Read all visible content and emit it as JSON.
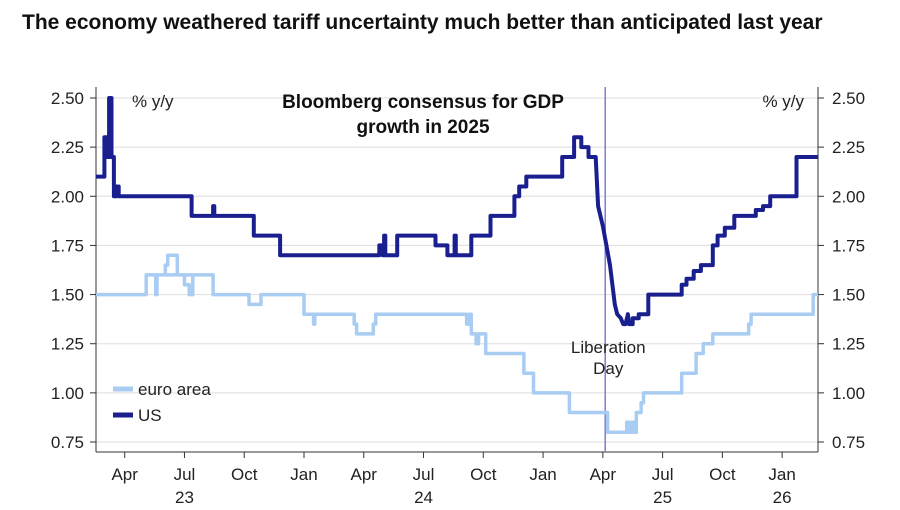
{
  "headline": "The economy weathered tariff uncertainty much better than anticipated last year",
  "colors": {
    "us": "#1a1f8f",
    "euro": "#a8ccf2",
    "grid": "#dddddd",
    "axis": "#333333",
    "marker": "#7c7cd8"
  },
  "chart_data": {
    "type": "line",
    "title": "Bloomberg consensus for GDP growth in 2025",
    "title_lines": [
      "Bloomberg consensus for GDP",
      "growth in 2025"
    ],
    "unit_left": "% y/y",
    "unit_right": "% y/y",
    "ylim": [
      0.75,
      2.5
    ],
    "yticks": [
      "2.50",
      "2.25",
      "2.00",
      "1.75",
      "1.50",
      "1.25",
      "1.00",
      "0.75"
    ],
    "x_range": [
      2023.13,
      2026.15
    ],
    "xticks": [
      {
        "t": 2023.25,
        "label": "Apr"
      },
      {
        "t": 2023.5,
        "label": "Jul"
      },
      {
        "t": 2023.75,
        "label": "Oct"
      },
      {
        "t": 2024.0,
        "label": "Jan"
      },
      {
        "t": 2024.25,
        "label": "Apr"
      },
      {
        "t": 2024.5,
        "label": "Jul"
      },
      {
        "t": 2024.75,
        "label": "Oct"
      },
      {
        "t": 2025.0,
        "label": "Jan"
      },
      {
        "t": 2025.25,
        "label": "Apr"
      },
      {
        "t": 2025.5,
        "label": "Jul"
      },
      {
        "t": 2025.75,
        "label": "Oct"
      },
      {
        "t": 2026.0,
        "label": "Jan"
      }
    ],
    "years": [
      {
        "t": 2023.5,
        "label": "23"
      },
      {
        "t": 2024.5,
        "label": "24"
      },
      {
        "t": 2025.5,
        "label": "25"
      },
      {
        "t": 2026.0,
        "label": "26"
      }
    ],
    "annotation": {
      "t": 2025.26,
      "lines": [
        "Liberation",
        "Day"
      ]
    },
    "legend": [
      {
        "key": "euro",
        "label": "euro area"
      },
      {
        "key": "us",
        "label": "US"
      }
    ],
    "series": [
      {
        "name": "US",
        "key": "us",
        "points": [
          [
            2023.13,
            2.1
          ],
          [
            2023.165,
            2.1
          ],
          [
            2023.165,
            2.3
          ],
          [
            2023.175,
            2.3
          ],
          [
            2023.175,
            2.2
          ],
          [
            2023.185,
            2.2
          ],
          [
            2023.185,
            2.5
          ],
          [
            2023.195,
            2.5
          ],
          [
            2023.195,
            2.2
          ],
          [
            2023.205,
            2.2
          ],
          [
            2023.205,
            2.0
          ],
          [
            2023.215,
            2.0
          ],
          [
            2023.215,
            2.05
          ],
          [
            2023.225,
            2.05
          ],
          [
            2023.225,
            2.0
          ],
          [
            2023.53,
            2.0
          ],
          [
            2023.53,
            1.9
          ],
          [
            2023.62,
            1.9
          ],
          [
            2023.62,
            1.95
          ],
          [
            2023.625,
            1.95
          ],
          [
            2023.625,
            1.9
          ],
          [
            2023.79,
            1.9
          ],
          [
            2023.79,
            1.8
          ],
          [
            2023.9,
            1.8
          ],
          [
            2023.9,
            1.7
          ],
          [
            2024.315,
            1.7
          ],
          [
            2024.315,
            1.75
          ],
          [
            2024.33,
            1.75
          ],
          [
            2024.33,
            1.7
          ],
          [
            2024.335,
            1.7
          ],
          [
            2024.335,
            1.8
          ],
          [
            2024.34,
            1.8
          ],
          [
            2024.34,
            1.7
          ],
          [
            2024.39,
            1.7
          ],
          [
            2024.39,
            1.8
          ],
          [
            2024.55,
            1.8
          ],
          [
            2024.55,
            1.75
          ],
          [
            2024.6,
            1.75
          ],
          [
            2024.6,
            1.7
          ],
          [
            2024.63,
            1.7
          ],
          [
            2024.63,
            1.8
          ],
          [
            2024.635,
            1.8
          ],
          [
            2024.635,
            1.7
          ],
          [
            2024.7,
            1.7
          ],
          [
            2024.7,
            1.8
          ],
          [
            2024.78,
            1.8
          ],
          [
            2024.78,
            1.9
          ],
          [
            2024.88,
            1.9
          ],
          [
            2024.88,
            2.0
          ],
          [
            2024.9,
            2.0
          ],
          [
            2024.9,
            2.05
          ],
          [
            2024.93,
            2.05
          ],
          [
            2024.93,
            2.1
          ],
          [
            2025.08,
            2.1
          ],
          [
            2025.08,
            2.2
          ],
          [
            2025.13,
            2.2
          ],
          [
            2025.13,
            2.3
          ],
          [
            2025.16,
            2.3
          ],
          [
            2025.16,
            2.25
          ],
          [
            2025.19,
            2.25
          ],
          [
            2025.19,
            2.2
          ],
          [
            2025.22,
            2.2
          ],
          [
            2025.23,
            1.95
          ],
          [
            2025.25,
            1.85
          ],
          [
            2025.265,
            1.75
          ],
          [
            2025.28,
            1.65
          ],
          [
            2025.29,
            1.55
          ],
          [
            2025.3,
            1.45
          ],
          [
            2025.31,
            1.4
          ],
          [
            2025.325,
            1.38
          ],
          [
            2025.335,
            1.35
          ],
          [
            2025.345,
            1.35
          ],
          [
            2025.355,
            1.4
          ],
          [
            2025.36,
            1.35
          ],
          [
            2025.375,
            1.35
          ],
          [
            2025.375,
            1.38
          ],
          [
            2025.4,
            1.38
          ],
          [
            2025.4,
            1.4
          ],
          [
            2025.44,
            1.4
          ],
          [
            2025.44,
            1.5
          ],
          [
            2025.58,
            1.5
          ],
          [
            2025.58,
            1.55
          ],
          [
            2025.6,
            1.55
          ],
          [
            2025.6,
            1.58
          ],
          [
            2025.63,
            1.58
          ],
          [
            2025.63,
            1.62
          ],
          [
            2025.66,
            1.62
          ],
          [
            2025.66,
            1.65
          ],
          [
            2025.71,
            1.65
          ],
          [
            2025.71,
            1.75
          ],
          [
            2025.73,
            1.75
          ],
          [
            2025.73,
            1.8
          ],
          [
            2025.76,
            1.8
          ],
          [
            2025.76,
            1.84
          ],
          [
            2025.8,
            1.84
          ],
          [
            2025.8,
            1.9
          ],
          [
            2025.89,
            1.9
          ],
          [
            2025.89,
            1.93
          ],
          [
            2025.92,
            1.93
          ],
          [
            2025.92,
            1.95
          ],
          [
            2025.95,
            1.95
          ],
          [
            2025.95,
            2.0
          ],
          [
            2026.06,
            2.0
          ],
          [
            2026.06,
            2.2
          ],
          [
            2026.15,
            2.2
          ]
        ]
      },
      {
        "name": "euro area",
        "key": "euro",
        "points": [
          [
            2023.13,
            1.5
          ],
          [
            2023.34,
            1.5
          ],
          [
            2023.34,
            1.6
          ],
          [
            2023.53,
            1.6
          ],
          [
            2023.53,
            1.6
          ],
          [
            2023.38,
            1.6
          ],
          [
            2023.38,
            1.5
          ],
          [
            2023.385,
            1.5
          ],
          [
            2023.385,
            1.6
          ],
          [
            2023.42,
            1.6
          ],
          [
            2023.42,
            1.65
          ],
          [
            2023.43,
            1.65
          ],
          [
            2023.43,
            1.7
          ],
          [
            2023.47,
            1.7
          ],
          [
            2023.47,
            1.6
          ],
          [
            2023.5,
            1.6
          ],
          [
            2023.5,
            1.55
          ],
          [
            2023.52,
            1.55
          ],
          [
            2023.52,
            1.5
          ],
          [
            2023.535,
            1.5
          ],
          [
            2023.535,
            1.6
          ],
          [
            2023.62,
            1.6
          ],
          [
            2023.62,
            1.5
          ],
          [
            2023.77,
            1.5
          ],
          [
            2023.77,
            1.45
          ],
          [
            2023.82,
            1.45
          ],
          [
            2023.82,
            1.5
          ],
          [
            2024.0,
            1.5
          ],
          [
            2024.0,
            1.4
          ],
          [
            2024.04,
            1.4
          ],
          [
            2024.04,
            1.35
          ],
          [
            2024.045,
            1.35
          ],
          [
            2024.045,
            1.4
          ],
          [
            2024.21,
            1.4
          ],
          [
            2024.21,
            1.35
          ],
          [
            2024.22,
            1.35
          ],
          [
            2024.22,
            1.3
          ],
          [
            2024.29,
            1.3
          ],
          [
            2024.29,
            1.35
          ],
          [
            2024.3,
            1.35
          ],
          [
            2024.3,
            1.4
          ],
          [
            2024.68,
            1.4
          ],
          [
            2024.68,
            1.35
          ],
          [
            2024.69,
            1.35
          ],
          [
            2024.69,
            1.4
          ],
          [
            2024.7,
            1.4
          ],
          [
            2024.7,
            1.3
          ],
          [
            2024.72,
            1.3
          ],
          [
            2024.72,
            1.25
          ],
          [
            2024.73,
            1.25
          ],
          [
            2024.73,
            1.3
          ],
          [
            2024.76,
            1.3
          ],
          [
            2024.76,
            1.2
          ],
          [
            2024.92,
            1.2
          ],
          [
            2024.92,
            1.1
          ],
          [
            2024.96,
            1.1
          ],
          [
            2024.96,
            1.0
          ],
          [
            2025.11,
            1.0
          ],
          [
            2025.11,
            0.9
          ],
          [
            2025.27,
            0.9
          ],
          [
            2025.27,
            0.8
          ],
          [
            2025.35,
            0.8
          ],
          [
            2025.35,
            0.85
          ],
          [
            2025.36,
            0.85
          ],
          [
            2025.36,
            0.8
          ],
          [
            2025.37,
            0.8
          ],
          [
            2025.37,
            0.85
          ],
          [
            2025.38,
            0.85
          ],
          [
            2025.38,
            0.8
          ],
          [
            2025.39,
            0.8
          ],
          [
            2025.39,
            0.9
          ],
          [
            2025.41,
            0.9
          ],
          [
            2025.41,
            0.95
          ],
          [
            2025.42,
            0.95
          ],
          [
            2025.42,
            1.0
          ],
          [
            2025.58,
            1.0
          ],
          [
            2025.58,
            1.1
          ],
          [
            2025.64,
            1.1
          ],
          [
            2025.64,
            1.2
          ],
          [
            2025.67,
            1.2
          ],
          [
            2025.67,
            1.25
          ],
          [
            2025.71,
            1.25
          ],
          [
            2025.71,
            1.3
          ],
          [
            2025.86,
            1.3
          ],
          [
            2025.86,
            1.35
          ],
          [
            2025.87,
            1.35
          ],
          [
            2025.87,
            1.4
          ],
          [
            2026.13,
            1.4
          ],
          [
            2026.13,
            1.5
          ],
          [
            2026.15,
            1.5
          ]
        ]
      }
    ]
  }
}
